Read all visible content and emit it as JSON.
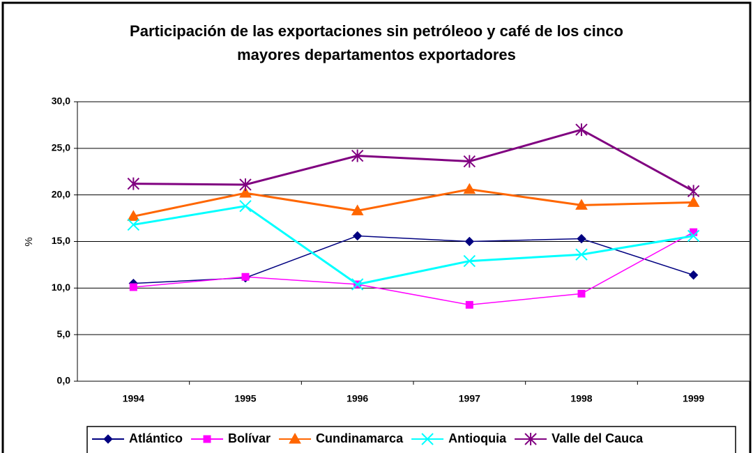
{
  "chart_data": {
    "type": "line",
    "title": [
      "Participación de las exportaciones sin petróleoo y café de los cinco",
      "mayores departamentos exportadores"
    ],
    "y_label": "%",
    "categories": [
      "1994",
      "1995",
      "1996",
      "1997",
      "1998",
      "1999"
    ],
    "series": [
      {
        "name": "Atlántico",
        "color": "#000080",
        "marker": "diamond",
        "values": [
          10.5,
          11.1,
          15.6,
          15.0,
          15.3,
          11.4
        ]
      },
      {
        "name": "Bolívar",
        "color": "#FF00FF",
        "marker": "square",
        "values": [
          10.1,
          11.2,
          10.4,
          8.2,
          9.4,
          16.0
        ]
      },
      {
        "name": "Cundinamarca",
        "color": "#FF6600",
        "marker": "triangle",
        "values": [
          17.7,
          20.2,
          18.3,
          20.6,
          18.9,
          19.2
        ]
      },
      {
        "name": "Antioquia",
        "color": "#00FFFF",
        "marker": "x",
        "values": [
          16.8,
          18.8,
          10.4,
          12.9,
          13.6,
          15.6
        ]
      },
      {
        "name": "Valle del Cauca",
        "color": "#800080",
        "marker": "star",
        "values": [
          21.2,
          21.1,
          24.2,
          23.6,
          27.0,
          20.4
        ]
      }
    ],
    "ylim": [
      0,
      30
    ],
    "yticks": [
      {
        "value": 0,
        "label": "0,0"
      },
      {
        "value": 5,
        "label": "5,0"
      },
      {
        "value": 10,
        "label": "10,0"
      },
      {
        "value": 15,
        "label": "15,0"
      },
      {
        "value": 20,
        "label": "20,0"
      },
      {
        "value": 25,
        "label": "25,0"
      },
      {
        "value": 30,
        "label": "30,0"
      }
    ],
    "grid": true,
    "legend": "bottom"
  }
}
